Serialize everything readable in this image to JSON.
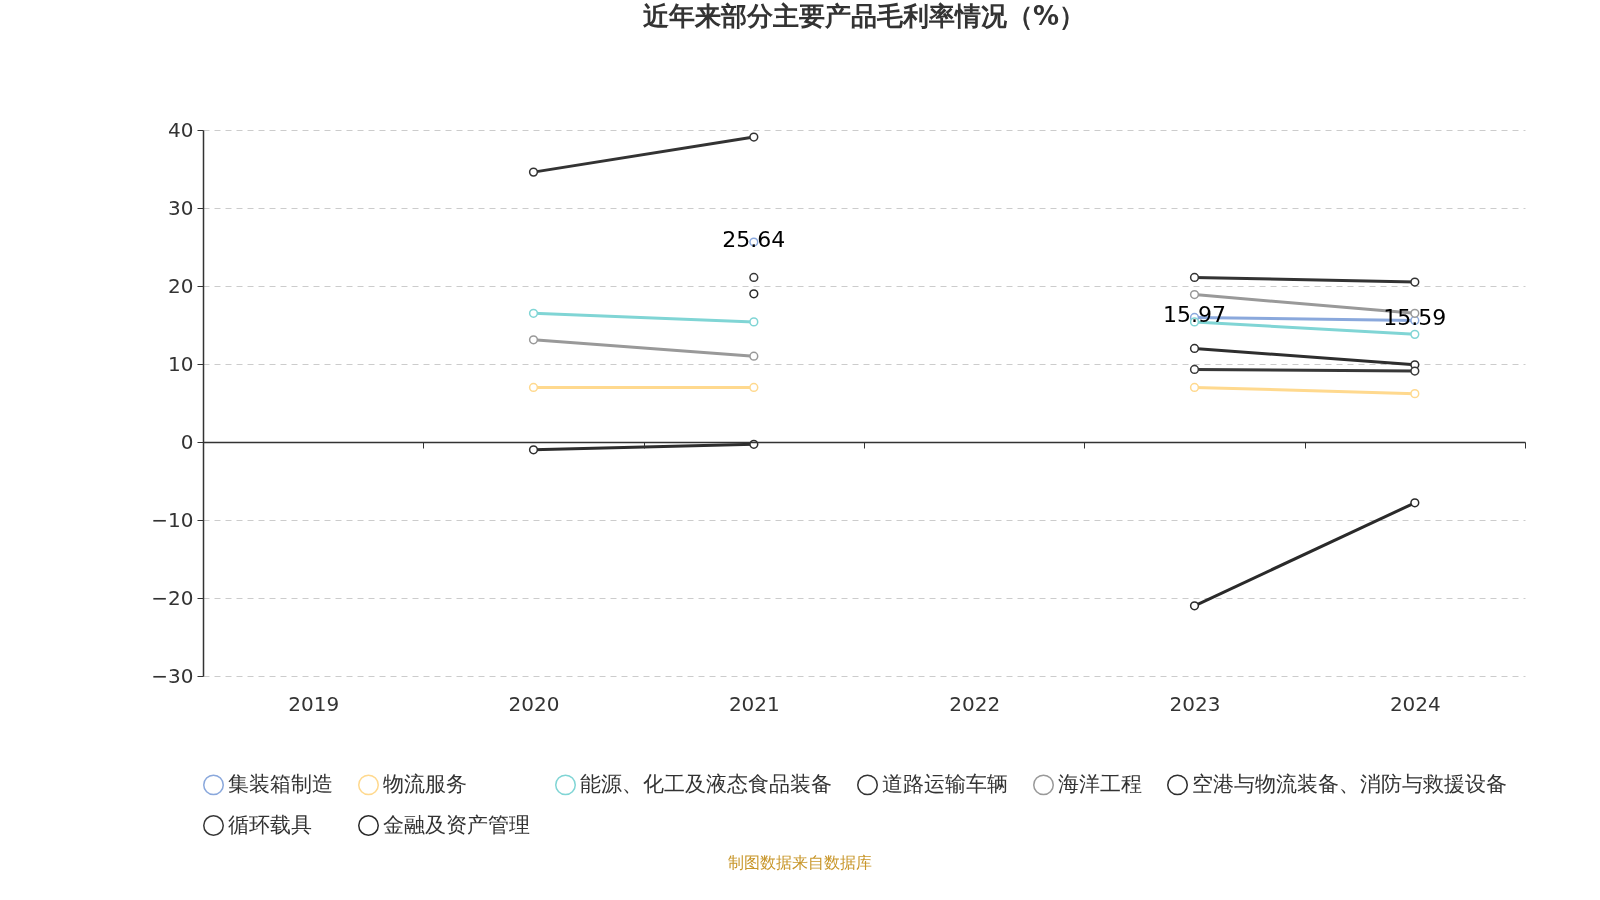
{
  "chart_data": {
    "type": "line",
    "title": "近年来部分主要产品毛利率情况（%）",
    "categories": [
      "2019",
      "2020",
      "2021",
      "2022",
      "2023",
      "2024"
    ],
    "series": [
      {
        "name": "集装箱制造",
        "color": "#8aa8dc",
        "values": [
          null,
          null,
          25.64,
          null,
          15.97,
          15.59
        ],
        "value_labels": [
          null,
          null,
          "25.64",
          null,
          "15.97",
          "15.59"
        ]
      },
      {
        "name": "物流服务",
        "color": "#ffd98e",
        "values": [
          null,
          7.0,
          7.0,
          null,
          7.0,
          6.2
        ]
      },
      {
        "name": "能源、化工及液态食品装备",
        "color": "#80d5d5",
        "values": [
          null,
          16.5,
          15.4,
          null,
          15.4,
          13.8
        ]
      },
      {
        "name": "道路运输车辆",
        "color": "#333333",
        "values": [
          null,
          34.6,
          39.1,
          null,
          21.1,
          20.5
        ]
      },
      {
        "name": "海洋工程",
        "color": "#999999",
        "values": [
          null,
          13.1,
          11.0,
          null,
          18.9,
          16.5
        ]
      },
      {
        "name": "空港与物流装备、消防与救援设备",
        "color": "#2e2e2e",
        "values": [
          null,
          -1.0,
          -0.3,
          null,
          12.0,
          9.9
        ]
      },
      {
        "name": "循环载具",
        "color": "#383838",
        "values": [
          null,
          null,
          21.1,
          null,
          9.3,
          9.1
        ]
      },
      {
        "name": "金融及资产管理",
        "color": "#2a2a2a",
        "values": [
          null,
          null,
          19.0,
          null,
          -21.0,
          -7.8
        ]
      }
    ],
    "ylim": [
      -30,
      40
    ],
    "yticks": [
      -30,
      -20,
      -10,
      0,
      10,
      20,
      30,
      40
    ],
    "grid": "y",
    "legend": "bottom",
    "marker": "circle",
    "annotations": [
      "制图数据来自数据库"
    ]
  }
}
